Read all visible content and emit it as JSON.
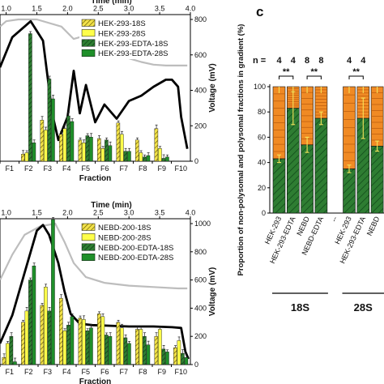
{
  "panel_c_label": "c",
  "chart_data": [
    {
      "type": "bar",
      "panel": "top-left",
      "categories": [
        "F1",
        "F2",
        "F3",
        "F4",
        "F5",
        "F6",
        "F7",
        "F8",
        "F9",
        "F10"
      ],
      "xlabel": "Fraction",
      "x2label": "Time (min)",
      "x2ticks": [
        "1.0",
        "1.5",
        "2.0",
        "2.5",
        "3.0",
        "3.5",
        "4.0"
      ],
      "y2label": "Voltage (mV)",
      "y2lim": [
        0,
        800
      ],
      "y2ticks": [
        "0",
        "200",
        "400",
        "600",
        "800"
      ],
      "legend_position": "top-right",
      "series": [
        {
          "name": "HEK-293-18S",
          "color": "#f2e24a",
          "hatched": true,
          "values": [
            0,
            5,
            29,
            19,
            15,
            16,
            27,
            15,
            23,
            0
          ]
        },
        {
          "name": "HEK-293-28S",
          "color": "#fefe4a",
          "hatched": false,
          "values": [
            0,
            6,
            22,
            23,
            13,
            9,
            19,
            6,
            9,
            0
          ]
        },
        {
          "name": "HEK-293-EDTA-18S",
          "color": "#2e7d32",
          "hatched": true,
          "values": [
            0,
            90,
            58,
            32,
            18,
            15,
            7,
            3,
            2,
            0
          ]
        },
        {
          "name": "HEK-293-EDTA-28S",
          "color": "#1f8f2a",
          "hatched": false,
          "values": [
            0,
            13,
            44,
            28,
            17,
            11,
            7,
            4,
            3,
            0
          ]
        }
      ],
      "ylim": [
        0,
        100
      ],
      "traces": [
        {
          "color": "#bdbdbd",
          "x": [
            0.9,
            1.0,
            1.2,
            1.5,
            1.9,
            2.1,
            2.4,
            2.6,
            2.8,
            3.0,
            3.2,
            3.4,
            3.6,
            3.8,
            3.95
          ],
          "voltage": [
            760,
            790,
            800,
            800,
            760,
            690,
            720,
            660,
            620,
            580,
            560,
            545,
            540,
            540,
            540
          ]
        },
        {
          "color": "#000000",
          "x": [
            0.9,
            1.1,
            1.4,
            1.6,
            1.75,
            1.85,
            2.0,
            2.1,
            2.2,
            2.3,
            2.45,
            2.6,
            2.8,
            3.0,
            3.2,
            3.4,
            3.6,
            3.7,
            3.8,
            3.85,
            3.9,
            3.95
          ],
          "voltage": [
            530,
            700,
            790,
            680,
            270,
            120,
            250,
            510,
            270,
            430,
            220,
            320,
            240,
            340,
            370,
            420,
            460,
            460,
            420,
            250,
            160,
            70
          ]
        }
      ]
    },
    {
      "type": "bar",
      "panel": "bottom-left",
      "categories": [
        "F1",
        "F2",
        "F3",
        "F4",
        "F5",
        "F6",
        "F7",
        "F8",
        "F9",
        "F10"
      ],
      "xlabel": "Fraction",
      "x2label": "Time (min)",
      "x2ticks": [
        "1.0",
        "1.5",
        "2.0",
        "2.5",
        "3.0",
        "3.5",
        "4.0"
      ],
      "y2label": "Voltage (mV)",
      "y2lim": [
        0,
        1000
      ],
      "y2ticks": [
        "0",
        "200",
        "400",
        "600",
        "800",
        "1000"
      ],
      "legend_position": "top-right",
      "series": [
        {
          "name": "NEBD-200-18S",
          "color": "#f2e24a",
          "hatched": true,
          "values": [
            5,
            30,
            42,
            47,
            33,
            36,
            30,
            25,
            20,
            12
          ]
        },
        {
          "name": "NEBD-200-28S",
          "color": "#fefe4a",
          "hatched": false,
          "values": [
            15,
            38,
            55,
            24,
            32,
            34,
            26,
            25,
            25,
            17
          ]
        },
        {
          "name": "NEBD-200-EDTA-18S",
          "color": "#2e7d32",
          "hatched": true,
          "values": [
            20,
            60,
            38,
            28,
            24,
            21,
            19,
            20,
            11,
            8
          ]
        },
        {
          "name": "NEBD-200-EDTA-28S",
          "color": "#1f8f2a",
          "hatched": false,
          "values": [
            2,
            70,
            105,
            34,
            26,
            20,
            15,
            14,
            9,
            5
          ]
        }
      ],
      "ylim": [
        0,
        100
      ],
      "traces": [
        {
          "color": "#bdbdbd",
          "x": [
            0.9,
            1.1,
            1.3,
            1.55,
            1.8,
            1.95,
            2.1,
            2.3,
            2.6,
            3.0,
            3.4,
            3.8,
            3.95
          ],
          "voltage": [
            600,
            780,
            920,
            980,
            1000,
            870,
            720,
            620,
            580,
            560,
            550,
            540,
            540
          ]
        },
        {
          "color": "#000000",
          "x": [
            0.9,
            1.1,
            1.3,
            1.5,
            1.6,
            1.7,
            1.85,
            1.95,
            2.05,
            2.2,
            2.4,
            2.7,
            3.0,
            3.4,
            3.7,
            3.85,
            3.92,
            3.97
          ],
          "voltage": [
            150,
            350,
            650,
            950,
            990,
            920,
            720,
            520,
            360,
            290,
            280,
            275,
            270,
            270,
            265,
            260,
            90,
            40
          ]
        }
      ]
    },
    {
      "type": "bar",
      "panel": "c",
      "stacked": true,
      "n_label": "n =",
      "categories": [
        "HEK-293",
        "HEK-293-EDTA",
        "NEBD",
        "NEBD-EDTA",
        "--",
        "HEK-293",
        "HEK-293-EDTA",
        "NEBD"
      ],
      "n_values": [
        "4",
        "4",
        "8",
        "8",
        "",
        "4",
        "4",
        ""
      ],
      "significance": [
        "**",
        "**",
        "",
        "**"
      ],
      "groups": [
        {
          "label": "18S"
        },
        {
          "label": "28S"
        }
      ],
      "ylabel": "Proportion of non-polysomal and polysomal fractions in gradient (%)",
      "ylim": [
        0,
        100
      ],
      "yticks": [
        "0",
        "20",
        "40",
        "60",
        "80",
        "100"
      ],
      "series": [
        {
          "name": "non-polysomal",
          "color": "#2e7d32",
          "hatched": true,
          "values": [
            43,
            83,
            54,
            75,
            0,
            35,
            75,
            53
          ]
        },
        {
          "name": "polysomal",
          "color": "#f08a24",
          "hatched": false,
          "values": [
            57,
            17,
            46,
            25,
            0,
            65,
            25,
            47
          ]
        }
      ],
      "error": [
        3,
        13,
        6,
        5,
        0,
        3,
        16,
        4
      ],
      "error_color": "#f4e35a"
    }
  ]
}
